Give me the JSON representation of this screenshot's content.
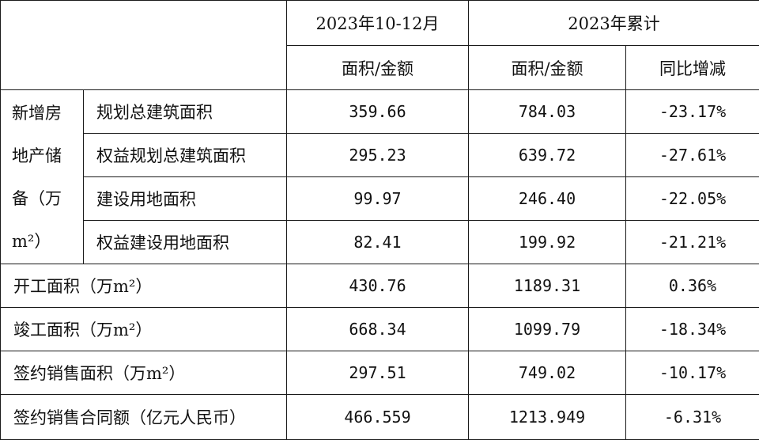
{
  "header": {
    "period_q4": "2023年10-12月",
    "period_cumulative": "2023年累计",
    "area_amount_q4": "面积/金额",
    "area_amount_cumulative": "面积/金额",
    "yoy_change": "同比增减"
  },
  "land_group": {
    "label_line1": "新增房",
    "label_line2": "地产储",
    "label_line3": "备（万",
    "label_line4": "m²）"
  },
  "rows": [
    {
      "label": "规划总建筑面积",
      "q4": "359.66",
      "cumulative": "784.03",
      "yoy": "-23.17%"
    },
    {
      "label": "权益规划总建筑面积",
      "q4": "295.23",
      "cumulative": "639.72",
      "yoy": "-27.61%"
    },
    {
      "label": "建设用地面积",
      "q4": "99.97",
      "cumulative": "246.40",
      "yoy": "-22.05%"
    },
    {
      "label": "权益建设用地面积",
      "q4": "82.41",
      "cumulative": "199.92",
      "yoy": "-21.21%"
    },
    {
      "label": "开工面积（万m²）",
      "q4": "430.76",
      "cumulative": "1189.31",
      "yoy": "0.36%"
    },
    {
      "label": "竣工面积（万m²）",
      "q4": "668.34",
      "cumulative": "1099.79",
      "yoy": "-18.34%"
    },
    {
      "label": "签约销售面积（万m²）",
      "q4": "297.51",
      "cumulative": "749.02",
      "yoy": "-10.17%"
    },
    {
      "label": "签约销售合同额（亿元人民币）",
      "q4": "466.559",
      "cumulative": "1213.949",
      "yoy": "-6.31%"
    }
  ]
}
